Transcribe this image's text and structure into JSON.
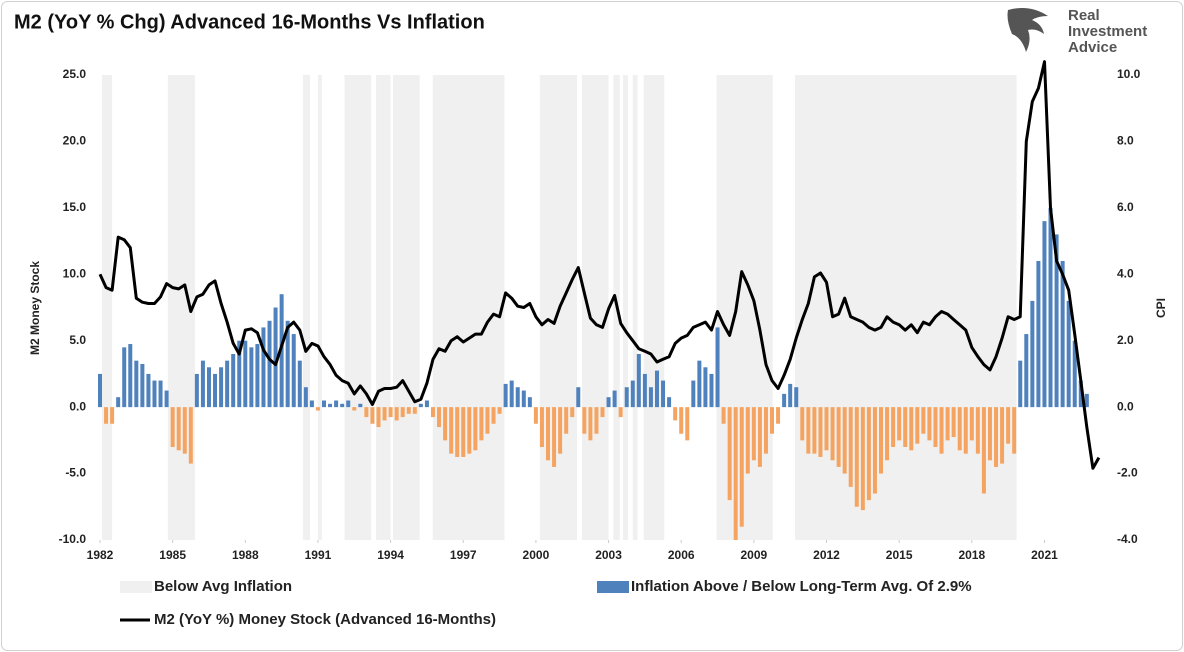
{
  "chart_data": {
    "type": "combo",
    "title": "M2 (YoY % Chg) Advanced 16-Months Vs Inflation",
    "logo": [
      "Real",
      "Investment",
      "Advice"
    ],
    "y_label": "M2 Money Stock",
    "y2_label": "CPI",
    "xlim": [
      1982,
      2023.5
    ],
    "xticks": [
      1982,
      1985,
      1988,
      1991,
      1994,
      1997,
      2000,
      2003,
      2006,
      2009,
      2012,
      2015,
      2018,
      2021
    ],
    "ylim": [
      -10,
      25
    ],
    "yticks": [
      {
        "value": -10,
        "label": "-10.0"
      },
      {
        "value": -5,
        "label": "-5.0"
      },
      {
        "value": 0,
        "label": "0.0"
      },
      {
        "value": 5,
        "label": "5.0"
      },
      {
        "value": 10,
        "label": "10.0"
      },
      {
        "value": 15,
        "label": "15.0"
      },
      {
        "value": 20,
        "label": "20.0"
      },
      {
        "value": 25,
        "label": "25.0"
      }
    ],
    "y2lim": [
      -4,
      10
    ],
    "y2ticks": [
      {
        "value": -4,
        "label": "-4.0"
      },
      {
        "value": -2,
        "label": "-2.0"
      },
      {
        "value": 0,
        "label": "0.0"
      },
      {
        "value": 2,
        "label": "2.0"
      },
      {
        "value": 4,
        "label": "4.0"
      },
      {
        "value": 6,
        "label": "6.0"
      },
      {
        "value": 8,
        "label": "8.0"
      },
      {
        "value": 10,
        "label": "10.0"
      }
    ],
    "x": [
      1982,
      1982.25,
      1982.5,
      1982.75,
      1983,
      1983.25,
      1983.5,
      1983.75,
      1984,
      1984.25,
      1984.5,
      1984.75,
      1985,
      1985.25,
      1985.5,
      1985.75,
      1986,
      1986.25,
      1986.5,
      1986.75,
      1987,
      1987.25,
      1987.5,
      1987.75,
      1988,
      1988.25,
      1988.5,
      1988.75,
      1989,
      1989.25,
      1989.5,
      1989.75,
      1990,
      1990.25,
      1990.5,
      1990.75,
      1991,
      1991.25,
      1991.5,
      1991.75,
      1992,
      1992.25,
      1992.5,
      1992.75,
      1993,
      1993.25,
      1993.5,
      1993.75,
      1994,
      1994.25,
      1994.5,
      1994.75,
      1995,
      1995.25,
      1995.5,
      1995.75,
      1996,
      1996.25,
      1996.5,
      1996.75,
      1997,
      1997.25,
      1997.5,
      1997.75,
      1998,
      1998.25,
      1998.5,
      1998.75,
      1999,
      1999.25,
      1999.5,
      1999.75,
      2000,
      2000.25,
      2000.5,
      2000.75,
      2001,
      2001.25,
      2001.5,
      2001.75,
      2002,
      2002.25,
      2002.5,
      2002.75,
      2003,
      2003.25,
      2003.5,
      2003.75,
      2004,
      2004.25,
      2004.5,
      2004.75,
      2005,
      2005.25,
      2005.5,
      2005.75,
      2006,
      2006.25,
      2006.5,
      2006.75,
      2007,
      2007.25,
      2007.5,
      2007.75,
      2008,
      2008.25,
      2008.5,
      2008.75,
      2009,
      2009.25,
      2009.5,
      2009.75,
      2010,
      2010.25,
      2010.5,
      2010.75,
      2011,
      2011.25,
      2011.5,
      2011.75,
      2012,
      2012.25,
      2012.5,
      2012.75,
      2013,
      2013.25,
      2013.5,
      2013.75,
      2014,
      2014.25,
      2014.5,
      2014.75,
      2015,
      2015.25,
      2015.5,
      2015.75,
      2016,
      2016.25,
      2016.5,
      2016.75,
      2017,
      2017.25,
      2017.5,
      2017.75,
      2018,
      2018.25,
      2018.5,
      2018.75,
      2019,
      2019.25,
      2019.5,
      2019.75,
      2020,
      2020.25,
      2020.5,
      2020.75,
      2021,
      2021.25,
      2021.5,
      2021.75,
      2022,
      2022.25,
      2022.5,
      2022.75,
      2023,
      2023.25
    ],
    "legend": "bottom",
    "series": [
      {
        "name": "Below Avg Inflation",
        "type": "span",
        "color": "#f0f0f0",
        "periods": [
          [
            1982.08,
            1982.5
          ],
          [
            1984.8,
            1985.92
          ],
          [
            1990.38,
            1990.67
          ],
          [
            1991.0,
            1991.16
          ],
          [
            1992.1,
            1993.2
          ],
          [
            1993.4,
            1994.0
          ],
          [
            1994.1,
            1995.2
          ],
          [
            1995.74,
            1998.7
          ],
          [
            2000.16,
            2001.7
          ],
          [
            2001.9,
            2003.0
          ],
          [
            2003.2,
            2003.46
          ],
          [
            2003.6,
            2003.8
          ],
          [
            2004.0,
            2004.2
          ],
          [
            2004.45,
            2005.3
          ],
          [
            2007.46,
            2009.78
          ],
          [
            2010.7,
            2019.85
          ]
        ]
      },
      {
        "name": "Inflation Above / Below Long-Term Avg. Of 2.9%",
        "type": "bar",
        "axis": "y2",
        "color": "#4f81bd",
        "negative_color": "#f4a460",
        "values": [
          1.0,
          -0.5,
          -0.5,
          0.3,
          1.8,
          1.9,
          1.4,
          1.3,
          1.0,
          0.8,
          0.8,
          0.5,
          -1.2,
          -1.3,
          -1.4,
          -1.7,
          1.0,
          1.4,
          1.2,
          1.0,
          1.2,
          1.4,
          1.6,
          2.0,
          2.0,
          1.8,
          1.9,
          2.4,
          2.6,
          3.0,
          3.4,
          2.6,
          2.2,
          1.4,
          0.6,
          0.2,
          -0.1,
          0.2,
          0.1,
          0.2,
          0.1,
          0.2,
          -0.1,
          0.1,
          -0.3,
          -0.5,
          -0.6,
          -0.4,
          -0.3,
          -0.4,
          -0.3,
          -0.2,
          -0.2,
          0.1,
          0.2,
          -0.3,
          -0.6,
          -1.0,
          -1.4,
          -1.5,
          -1.5,
          -1.4,
          -1.3,
          -1.0,
          -0.8,
          -0.5,
          -0.2,
          0.7,
          0.8,
          0.6,
          0.5,
          0.3,
          -0.5,
          -1.2,
          -1.6,
          -1.8,
          -1.4,
          -0.8,
          -0.3,
          0.6,
          -0.8,
          -1.0,
          -0.8,
          -0.3,
          0.3,
          0.5,
          -0.3,
          0.6,
          0.8,
          1.6,
          1.0,
          0.6,
          1.1,
          0.8,
          0.3,
          -0.4,
          -0.8,
          -1.0,
          0.8,
          1.4,
          1.2,
          1.0,
          2.4,
          -0.5,
          -2.8,
          -4.0,
          -3.6,
          -2.0,
          -1.6,
          -1.8,
          -1.4,
          -0.8,
          -0.5,
          0.4,
          0.7,
          0.6,
          -1.0,
          -1.4,
          -1.4,
          -1.5,
          -1.3,
          -1.6,
          -1.8,
          -2.0,
          -2.4,
          -3.0,
          -3.1,
          -2.8,
          -2.6,
          -2.0,
          -1.6,
          -1.2,
          -1.0,
          -1.2,
          -1.3,
          -1.1,
          -0.8,
          -1.0,
          -1.2,
          -1.4,
          -1.0,
          -0.9,
          -1.3,
          -1.4,
          -1.0,
          -1.4,
          -2.6,
          -1.6,
          -1.8,
          -1.7,
          -1.1,
          -1.4,
          1.4,
          2.2,
          3.2,
          4.4,
          5.6,
          6.0,
          5.2,
          4.4,
          3.2,
          2.0,
          0.8,
          0.4,
          null,
          null
        ]
      },
      {
        "name": "M2 (YoY %) Money Stock (Advanced 16-Months)",
        "type": "line",
        "axis": "y",
        "color": "#000000",
        "values": [
          10.0,
          9.0,
          8.8,
          12.8,
          12.6,
          12.0,
          8.2,
          7.9,
          7.8,
          7.8,
          8.3,
          9.3,
          9.0,
          8.9,
          9.2,
          7.2,
          8.3,
          8.5,
          9.2,
          9.5,
          7.8,
          6.4,
          4.8,
          4.0,
          5.8,
          5.9,
          5.6,
          4.3,
          3.6,
          3.2,
          4.6,
          6.0,
          6.4,
          5.8,
          4.2,
          4.8,
          4.6,
          3.8,
          3.2,
          2.4,
          2.0,
          1.8,
          1.0,
          1.6,
          1.0,
          0.2,
          1.2,
          1.4,
          1.4,
          1.5,
          2.0,
          1.2,
          0.4,
          0.6,
          1.8,
          3.6,
          4.4,
          4.2,
          5.0,
          5.3,
          4.9,
          5.2,
          5.5,
          5.5,
          6.4,
          7.0,
          6.8,
          8.6,
          8.2,
          7.6,
          7.5,
          7.8,
          6.8,
          6.2,
          6.6,
          6.3,
          7.6,
          8.6,
          9.6,
          10.5,
          8.6,
          6.7,
          6.2,
          6.0,
          7.4,
          8.4,
          6.3,
          5.6,
          5.0,
          4.4,
          4.2,
          4.0,
          3.4,
          3.6,
          3.8,
          4.8,
          5.2,
          5.4,
          6.0,
          6.2,
          6.4,
          5.8,
          7.2,
          6.2,
          5.4,
          7.2,
          10.2,
          9.2,
          8.0,
          5.8,
          3.2,
          2.0,
          1.4,
          2.4,
          3.6,
          5.2,
          6.6,
          7.8,
          9.8,
          10.1,
          9.4,
          6.8,
          7.0,
          8.2,
          6.8,
          6.6,
          6.4,
          6.0,
          5.8,
          6.0,
          6.8,
          6.4,
          6.2,
          5.8,
          6.2,
          5.6,
          6.4,
          6.2,
          6.8,
          7.2,
          7.0,
          6.6,
          6.2,
          5.8,
          4.5,
          3.8,
          3.2,
          2.8,
          3.8,
          5.2,
          6.8,
          6.6,
          6.8,
          20.0,
          23.0,
          24.0,
          26.0,
          15.0,
          11.0,
          10.0,
          8.8,
          5.5,
          2.0,
          -1.5,
          -4.6,
          -3.8
        ]
      }
    ]
  }
}
